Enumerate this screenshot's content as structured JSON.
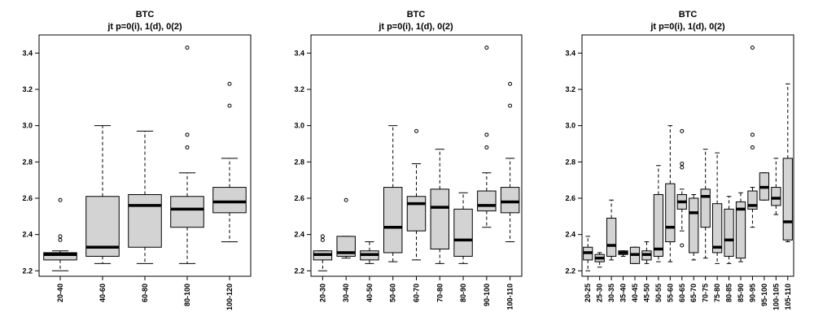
{
  "chart_data": [
    {
      "type": "box",
      "title": "BTC",
      "subtitle": "jt p=0(i), 1(d), 0(2)",
      "ylim": [
        2.17,
        3.5
      ],
      "yticks": [
        2.2,
        2.4,
        2.6,
        2.8,
        3.0,
        3.2,
        3.4
      ],
      "categories": [
        "20-40",
        "40-60",
        "60-80",
        "80-100",
        "100-120"
      ],
      "boxes": [
        {
          "low": 2.2,
          "q1": 2.26,
          "median": 2.29,
          "q3": 2.3,
          "high": 2.31,
          "outliers": [
            2.37,
            2.39,
            2.59
          ]
        },
        {
          "low": 2.24,
          "q1": 2.28,
          "median": 2.33,
          "q3": 2.61,
          "high": 3.0,
          "outliers": []
        },
        {
          "low": 2.24,
          "q1": 2.33,
          "median": 2.56,
          "q3": 2.62,
          "high": 2.97,
          "outliers": []
        },
        {
          "low": 2.24,
          "q1": 2.44,
          "median": 2.54,
          "q3": 2.61,
          "high": 2.74,
          "outliers": [
            2.88,
            2.95,
            3.43
          ]
        },
        {
          "low": 2.36,
          "q1": 2.52,
          "median": 2.58,
          "q3": 2.66,
          "high": 2.82,
          "outliers": [
            3.11,
            3.23
          ]
        }
      ]
    },
    {
      "type": "box",
      "title": "BTC",
      "subtitle": "jt p=0(i), 1(d), 0(2)",
      "ylim": [
        2.17,
        3.5
      ],
      "yticks": [
        2.2,
        2.4,
        2.6,
        2.8,
        3.0,
        3.2,
        3.4
      ],
      "categories": [
        "20-30",
        "30-40",
        "40-50",
        "50-60",
        "60-70",
        "70-80",
        "80-90",
        "90-100",
        "100-110"
      ],
      "boxes": [
        {
          "low": 2.2,
          "q1": 2.26,
          "median": 2.29,
          "q3": 2.31,
          "high": 2.31,
          "outliers": [
            2.37,
            2.39
          ]
        },
        {
          "low": 2.27,
          "q1": 2.28,
          "median": 2.3,
          "q3": 2.39,
          "high": 2.39,
          "outliers": [
            2.59
          ]
        },
        {
          "low": 2.24,
          "q1": 2.26,
          "median": 2.29,
          "q3": 2.31,
          "high": 2.36,
          "outliers": []
        },
        {
          "low": 2.25,
          "q1": 2.3,
          "median": 2.44,
          "q3": 2.66,
          "high": 3.0,
          "outliers": []
        },
        {
          "low": 2.26,
          "q1": 2.42,
          "median": 2.57,
          "q3": 2.61,
          "high": 2.79,
          "outliers": [
            2.97
          ]
        },
        {
          "low": 2.24,
          "q1": 2.32,
          "median": 2.55,
          "q3": 2.65,
          "high": 2.87,
          "outliers": []
        },
        {
          "low": 2.24,
          "q1": 2.28,
          "median": 2.37,
          "q3": 2.54,
          "high": 2.63,
          "outliers": []
        },
        {
          "low": 2.44,
          "q1": 2.53,
          "median": 2.56,
          "q3": 2.64,
          "high": 2.74,
          "outliers": [
            2.88,
            2.95,
            3.43
          ]
        },
        {
          "low": 2.36,
          "q1": 2.52,
          "median": 2.58,
          "q3": 2.66,
          "high": 2.82,
          "outliers": [
            3.11,
            3.23
          ]
        }
      ]
    },
    {
      "type": "box",
      "title": "BTC",
      "subtitle": "jt p=0(i), 1(d), 0(2)",
      "ylim": [
        2.17,
        3.5
      ],
      "yticks": [
        2.2,
        2.4,
        2.6,
        2.8,
        3.0,
        3.2,
        3.4
      ],
      "categories": [
        "20-25",
        "25-30",
        "30-35",
        "35-40",
        "40-45",
        "45-50",
        "50-55",
        "55-60",
        "60-65",
        "65-70",
        "70-75",
        "75-80",
        "80-85",
        "85-90",
        "90-95",
        "95-100",
        "100-105",
        "105-110"
      ],
      "boxes": [
        {
          "low": 2.2,
          "q1": 2.26,
          "median": 2.3,
          "q3": 2.33,
          "high": 2.39,
          "outliers": []
        },
        {
          "low": 2.22,
          "q1": 2.25,
          "median": 2.27,
          "q3": 2.29,
          "high": 2.3,
          "outliers": []
        },
        {
          "low": 2.26,
          "q1": 2.28,
          "median": 2.34,
          "q3": 2.49,
          "high": 2.59,
          "outliers": []
        },
        {
          "low": 2.28,
          "q1": 2.29,
          "median": 2.3,
          "q3": 2.31,
          "high": 2.31,
          "outliers": []
        },
        {
          "low": 2.24,
          "q1": 2.24,
          "median": 2.29,
          "q3": 2.33,
          "high": 2.33,
          "outliers": []
        },
        {
          "low": 2.24,
          "q1": 2.26,
          "median": 2.29,
          "q3": 2.31,
          "high": 2.36,
          "outliers": []
        },
        {
          "low": 2.25,
          "q1": 2.28,
          "median": 2.32,
          "q3": 2.62,
          "high": 2.78,
          "outliers": []
        },
        {
          "low": 2.25,
          "q1": 2.36,
          "median": 2.44,
          "q3": 2.68,
          "high": 3.0,
          "outliers": []
        },
        {
          "low": 2.42,
          "q1": 2.54,
          "median": 2.58,
          "q3": 2.62,
          "high": 2.65,
          "outliers": [
            2.34,
            2.77,
            2.79,
            2.97
          ]
        },
        {
          "low": 2.26,
          "q1": 2.3,
          "median": 2.52,
          "q3": 2.6,
          "high": 2.62,
          "outliers": []
        },
        {
          "low": 2.27,
          "q1": 2.44,
          "median": 2.61,
          "q3": 2.65,
          "high": 2.87,
          "outliers": []
        },
        {
          "low": 2.24,
          "q1": 2.3,
          "median": 2.33,
          "q3": 2.57,
          "high": 2.85,
          "outliers": []
        },
        {
          "low": 2.24,
          "q1": 2.28,
          "median": 2.37,
          "q3": 2.54,
          "high": 2.61,
          "outliers": []
        },
        {
          "low": 2.25,
          "q1": 2.27,
          "median": 2.54,
          "q3": 2.58,
          "high": 2.63,
          "outliers": []
        },
        {
          "low": 2.44,
          "q1": 2.54,
          "median": 2.56,
          "q3": 2.64,
          "high": 2.66,
          "outliers": [
            2.88,
            2.95,
            3.43
          ]
        },
        {
          "low": 2.59,
          "q1": 2.59,
          "median": 2.66,
          "q3": 2.74,
          "high": 2.74,
          "outliers": []
        },
        {
          "low": 2.51,
          "q1": 2.56,
          "median": 2.6,
          "q3": 2.66,
          "high": 2.82,
          "outliers": []
        },
        {
          "low": 2.36,
          "q1": 2.37,
          "median": 2.47,
          "q3": 2.82,
          "high": 3.23,
          "outliers": []
        }
      ]
    }
  ],
  "colors": {
    "box_fill": "#d3d3d3",
    "stroke": "#000000",
    "background": "#ffffff"
  }
}
